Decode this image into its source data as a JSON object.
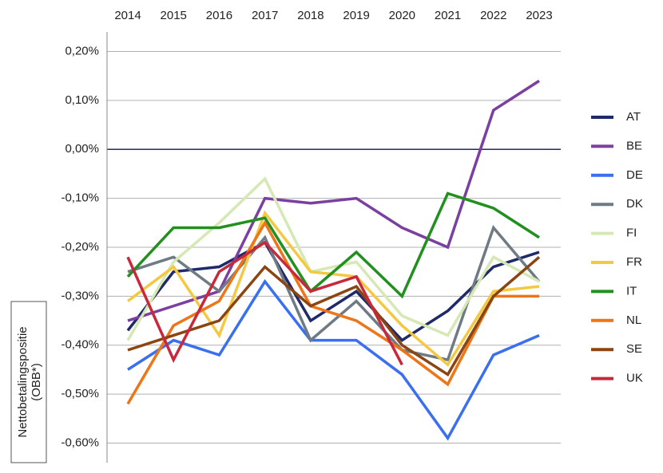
{
  "chart_data": {
    "type": "line",
    "y_label": [
      "Nettobetalingspositie",
      "(OBB*)"
    ],
    "categories": [
      "2014",
      "2015",
      "2016",
      "2017",
      "2018",
      "2019",
      "2020",
      "2021",
      "2022",
      "2023"
    ],
    "ylim": [
      -0.64,
      0.24
    ],
    "yticks": [
      {
        "value": 0.2,
        "label": "0,20%"
      },
      {
        "value": 0.1,
        "label": "0,10%"
      },
      {
        "value": 0,
        "label": "0,00%"
      },
      {
        "value": -0.1,
        "label": "-0,10%"
      },
      {
        "value": -0.2,
        "label": "-0,20%"
      },
      {
        "value": -0.3,
        "label": "-0,30%"
      },
      {
        "value": -0.4,
        "label": "-0,40%"
      },
      {
        "value": -0.5,
        "label": "-0,50%"
      },
      {
        "value": -0.6,
        "label": "-0,60%"
      }
    ],
    "grid": true,
    "legend": "right",
    "series": [
      {
        "name": "AT",
        "color": "#1f2a6b",
        "values": [
          -0.37,
          -0.25,
          -0.24,
          -0.19,
          -0.35,
          -0.29,
          -0.39,
          -0.33,
          -0.24,
          -0.21
        ]
      },
      {
        "name": "BE",
        "color": "#7b3fa0",
        "values": [
          -0.35,
          -0.32,
          -0.29,
          -0.1,
          -0.11,
          -0.1,
          -0.16,
          -0.2,
          0.08,
          0.14
        ]
      },
      {
        "name": "DE",
        "color": "#3a6ff0",
        "values": [
          -0.45,
          -0.39,
          -0.42,
          -0.27,
          -0.39,
          -0.39,
          -0.46,
          -0.59,
          -0.42,
          -0.38
        ]
      },
      {
        "name": "DK",
        "color": "#6e7b85",
        "values": [
          -0.25,
          -0.22,
          -0.29,
          -0.18,
          -0.39,
          -0.31,
          -0.41,
          -0.43,
          -0.16,
          -0.27
        ]
      },
      {
        "name": "FI",
        "color": "#d6e9b4",
        "values": [
          -0.39,
          -0.23,
          -0.15,
          -0.06,
          -0.25,
          -0.23,
          -0.34,
          -0.38,
          -0.22,
          -0.27
        ]
      },
      {
        "name": "FR",
        "color": "#f5c842",
        "values": [
          -0.31,
          -0.24,
          -0.38,
          -0.13,
          -0.25,
          -0.26,
          -0.36,
          -0.44,
          -0.29,
          -0.28
        ]
      },
      {
        "name": "IT",
        "color": "#22901e",
        "values": [
          -0.26,
          -0.16,
          -0.16,
          -0.14,
          -0.29,
          -0.21,
          -0.3,
          -0.09,
          -0.12,
          -0.18
        ]
      },
      {
        "name": "NL",
        "color": "#ee7518",
        "values": [
          -0.52,
          -0.36,
          -0.31,
          -0.15,
          -0.32,
          -0.35,
          -0.41,
          -0.48,
          -0.3,
          -0.3
        ]
      },
      {
        "name": "SE",
        "color": "#8b4513",
        "values": [
          -0.41,
          -0.38,
          -0.35,
          -0.24,
          -0.32,
          -0.28,
          -0.4,
          -0.46,
          -0.3,
          -0.22
        ]
      },
      {
        "name": "UK",
        "color": "#c8283c",
        "values": [
          -0.22,
          -0.43,
          -0.25,
          -0.19,
          -0.29,
          -0.26,
          -0.44,
          null,
          null,
          null
        ]
      }
    ]
  }
}
